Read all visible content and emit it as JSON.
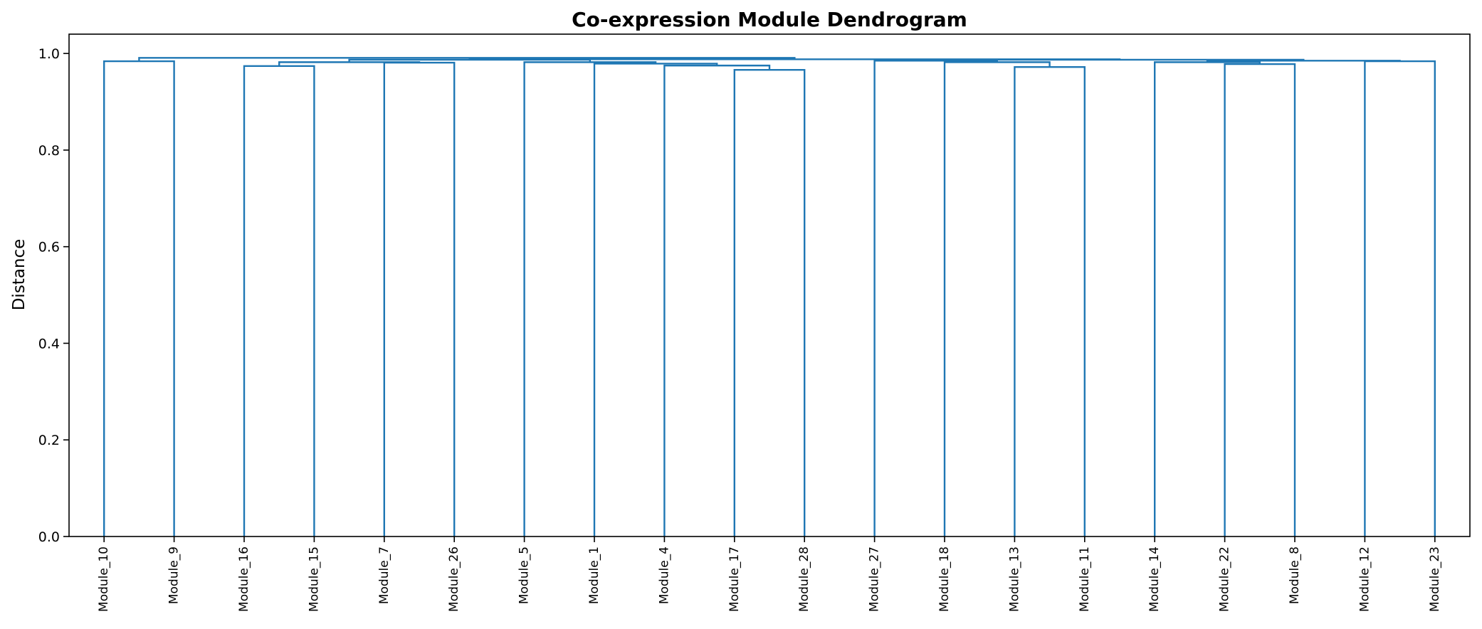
{
  "chart_data": {
    "type": "dendrogram",
    "title": "Co-expression Module Dendrogram",
    "xlabel": "",
    "ylabel": "Distance",
    "ylim": [
      0,
      1.04
    ],
    "yticks": [
      "0.0",
      "0.2",
      "0.4",
      "0.6",
      "0.8",
      "1.0"
    ],
    "grid": false,
    "legend": "none",
    "color": "#1f77b4",
    "leaves": [
      "Module_10",
      "Module_9",
      "Module_16",
      "Module_15",
      "Module_7",
      "Module_26",
      "Module_5",
      "Module_1",
      "Module_4",
      "Module_17",
      "Module_28",
      "Module_27",
      "Module_18",
      "Module_13",
      "Module_11",
      "Module_14",
      "Module_22",
      "Module_8",
      "Module_12",
      "Module_23"
    ],
    "merges": [
      {
        "left": "Module_10",
        "right": "Module_9",
        "height": 0.984
      },
      {
        "left": "Module_16",
        "right": "Module_15",
        "height": 0.974
      },
      {
        "left": "Module_7",
        "right": "Module_26",
        "height": 0.981
      },
      {
        "left": "Module_17",
        "right": "Module_28",
        "height": 0.966
      },
      {
        "left": "Module_4",
        "right": "Module_17+Module_28",
        "height": 0.975
      },
      {
        "left": "Module_1",
        "right": "Module_4+Module_17+Module_28",
        "height": 0.979
      },
      {
        "left": "Module_5",
        "right": "Module_1+Module_4+Module_17+Module_28",
        "height": 0.982
      },
      {
        "left": "Module_16+Module_15",
        "right": "Module_7+Module_26",
        "height": 0.982
      },
      {
        "left": "Module_16+Module_15+Module_7+Module_26",
        "right": "Module_5+Module_1+Module_4+Module_17+Module_28",
        "height": 0.987
      },
      {
        "left": "Module_13",
        "right": "Module_11",
        "height": 0.972
      },
      {
        "left": "Module_18",
        "right": "Module_13+Module_11",
        "height": 0.982
      },
      {
        "left": "Module_27",
        "right": "Module_18+Module_13+Module_11",
        "height": 0.985
      },
      {
        "left": "Module_22",
        "right": "Module_8",
        "height": 0.978
      },
      {
        "left": "Module_14",
        "right": "Module_22+Module_8",
        "height": 0.982
      },
      {
        "left": "Module_12",
        "right": "Module_23",
        "height": 0.984
      },
      {
        "left": "Module_14+Module_22+Module_8",
        "right": "Module_12+Module_23",
        "height": 0.985
      },
      {
        "left": "Module_27+Module_18+Module_13+Module_11",
        "right": "Module_14+Module_22+Module_8+Module_12+Module_23",
        "height": 0.987
      },
      {
        "left": "Module_16+Module_15+Module_7+Module_26+Module_5+Module_1+Module_4+Module_17+Module_28",
        "right": "Module_27+Module_18+Module_13+Module_11+Module_14+Module_22+Module_8+Module_12+Module_23",
        "height": 0.988
      },
      {
        "left": "Module_10+Module_9",
        "right": "Module_16+Module_15+Module_7+Module_26+Module_5+Module_1+Module_4+Module_17+Module_28+Module_27+Module_18+Module_13+Module_11+Module_14+Module_22+Module_8+Module_12+Module_23",
        "height": 0.991
      }
    ]
  }
}
